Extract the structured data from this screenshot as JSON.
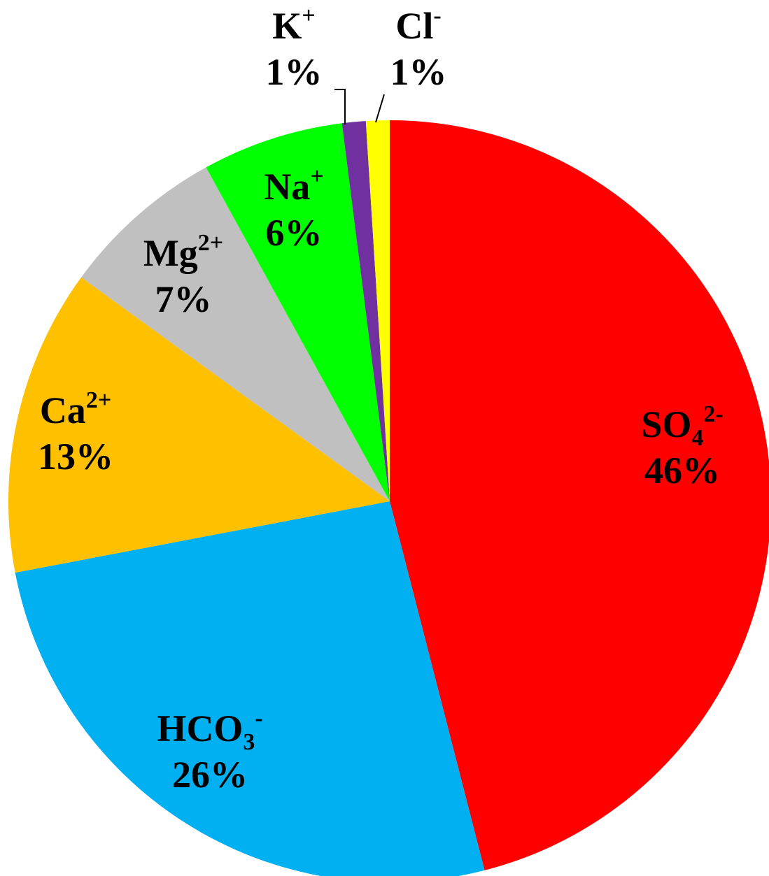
{
  "chart_data": {
    "type": "pie",
    "title": "",
    "start": "12 o'clock",
    "direction": "clockwise",
    "legend": "none",
    "slices": [
      {
        "ion": "SO",
        "sub": "4",
        "sup": "2-",
        "value": 46,
        "pct_label": "46%",
        "color": "#ff0000"
      },
      {
        "ion": "HCO",
        "sub": "3",
        "sup": "-",
        "value": 26,
        "pct_label": "26%",
        "color": "#00b0f0"
      },
      {
        "ion": "Ca",
        "sub": "",
        "sup": "2+",
        "value": 13,
        "pct_label": "13%",
        "color": "#ffc000"
      },
      {
        "ion": "Mg",
        "sub": "",
        "sup": "2+",
        "value": 7,
        "pct_label": "7%",
        "color": "#c0c0c0"
      },
      {
        "ion": "Na",
        "sub": "",
        "sup": "+",
        "value": 6,
        "pct_label": "6%",
        "color": "#00ff00"
      },
      {
        "ion": "K",
        "sub": "",
        "sup": "+",
        "value": 1,
        "pct_label": "1%",
        "color": "#7030a0"
      },
      {
        "ion": "Cl",
        "sub": "",
        "sup": "-",
        "value": 1,
        "pct_label": "1%",
        "color": "#ffff00"
      }
    ]
  }
}
